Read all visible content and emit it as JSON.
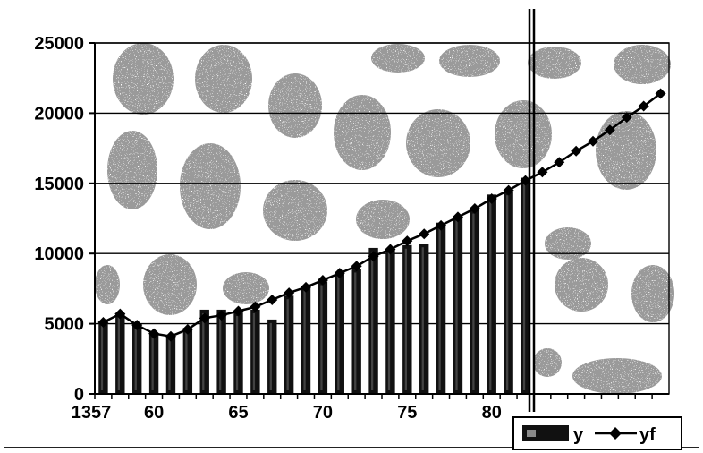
{
  "chart_data": {
    "type": "bar",
    "title": "",
    "xlabel": "",
    "ylabel": "",
    "ylim": [
      0,
      25000
    ],
    "yticks": [
      0,
      5000,
      10000,
      15000,
      20000,
      25000
    ],
    "yticks_text": [
      "0",
      "5000",
      "10000",
      "15000",
      "20000",
      "25000"
    ],
    "xtick_labels": [
      "1357",
      "60",
      "65",
      "70",
      "75",
      "80"
    ],
    "xtick_years": [
      1357,
      1360,
      1365,
      1370,
      1375,
      1380
    ],
    "grid": true,
    "legend_position": "bottom-right",
    "x": [
      1357,
      1358,
      1359,
      1360,
      1361,
      1362,
      1363,
      1364,
      1365,
      1366,
      1367,
      1368,
      1369,
      1370,
      1371,
      1372,
      1373,
      1374,
      1375,
      1376,
      1377,
      1378,
      1379,
      1380,
      1381,
      1382,
      1383,
      1384,
      1385,
      1386,
      1387,
      1388,
      1389,
      1390
    ],
    "series": [
      {
        "name": "y",
        "kind": "bar",
        "color": "#111111",
        "values": [
          5100,
          5700,
          4900,
          4300,
          4100,
          4700,
          6000,
          6000,
          5800,
          6000,
          5300,
          7000,
          7700,
          8000,
          8700,
          8900,
          10400,
          10300,
          10600,
          10700,
          12200,
          12600,
          13100,
          14200,
          14400,
          15400,
          null,
          null,
          null,
          null,
          null,
          null,
          null,
          null
        ]
      },
      {
        "name": "yf",
        "kind": "line",
        "marker": "diamond",
        "color": "#000000",
        "values": [
          5100,
          5700,
          4900,
          4300,
          4100,
          4600,
          5400,
          5600,
          5900,
          6200,
          6700,
          7200,
          7600,
          8100,
          8600,
          9100,
          9800,
          10300,
          10900,
          11400,
          12000,
          12600,
          13200,
          13900,
          14500,
          15200,
          15800,
          16500,
          17300,
          18000,
          18800,
          19700,
          20500,
          21400
        ]
      }
    ]
  },
  "colors": {
    "background": "#ffffff",
    "blob": "#9a9a9a",
    "gridline": "#000000",
    "bar": "#111111"
  }
}
